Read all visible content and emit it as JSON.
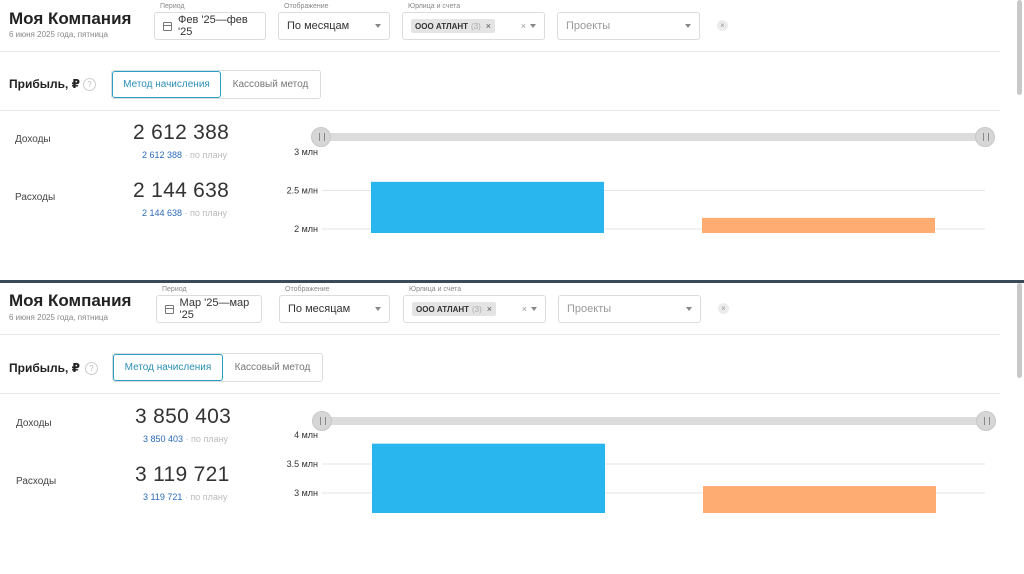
{
  "colors": {
    "income_bar": "#29b6ef",
    "expense_bar": "#ffac73",
    "accent": "#2a9fc6",
    "plan_link": "#2b6bb8"
  },
  "panels": [
    {
      "company_name": "Моя Компания",
      "date": "6 июня 2025 года, пятница",
      "filters": {
        "period": {
          "label": "Период",
          "value": "Фев '25—фев '25"
        },
        "display": {
          "label": "Отображение",
          "value": "По месяцам"
        },
        "entity": {
          "label": "Юрлица и счета",
          "chip": "ООО АТЛАНТ",
          "chip_count": "(3)"
        },
        "projects": {
          "placeholder": "Проекты"
        }
      },
      "profit_title": "Прибыль, ₽",
      "methods": {
        "accrual": "Метод начисления",
        "cash": "Кассовый метод",
        "active": "accrual"
      },
      "income": {
        "label": "Доходы",
        "value": "2 612 388",
        "plan_value": "2 612 388",
        "plan_suffix": "· по плану"
      },
      "expenses": {
        "label": "Расходы",
        "value": "2 144 638",
        "plan_value": "2 144 638",
        "plan_suffix": "· по плану"
      },
      "chart_data": {
        "type": "bar",
        "categories": [
          "Доходы",
          "Расходы"
        ],
        "values": [
          2612388,
          2144638
        ],
        "y_ticks": [
          "3 млн",
          "2.5 млн",
          "2 млн"
        ],
        "tick_values": [
          3000000,
          2500000,
          2000000
        ],
        "ylim": [
          2000000,
          3000000
        ]
      }
    },
    {
      "company_name": "Моя Компания",
      "date": "6 июня 2025 года, пятница",
      "filters": {
        "period": {
          "label": "Период",
          "value": "Мар '25—мар '25"
        },
        "display": {
          "label": "Отображение",
          "value": "По месяцам"
        },
        "entity": {
          "label": "Юрлица и счета",
          "chip": "ООО АТЛАНТ",
          "chip_count": "(3)"
        },
        "projects": {
          "placeholder": "Проекты"
        }
      },
      "profit_title": "Прибыль, ₽",
      "methods": {
        "accrual": "Метод начисления",
        "cash": "Кассовый метод",
        "active": "accrual"
      },
      "income": {
        "label": "Доходы",
        "value": "3 850 403",
        "plan_value": "3 850 403",
        "plan_suffix": "· по плану"
      },
      "expenses": {
        "label": "Расходы",
        "value": "3 119 721",
        "plan_value": "3 119 721",
        "plan_suffix": "· по плану"
      },
      "chart_data": {
        "type": "bar",
        "categories": [
          "Доходы",
          "Расходы"
        ],
        "values": [
          3850403,
          3119721
        ],
        "y_ticks": [
          "4 млн",
          "3.5 млн",
          "3 млн"
        ],
        "tick_values": [
          4000000,
          3500000,
          3000000
        ],
        "ylim": [
          3000000,
          4000000
        ]
      }
    }
  ]
}
